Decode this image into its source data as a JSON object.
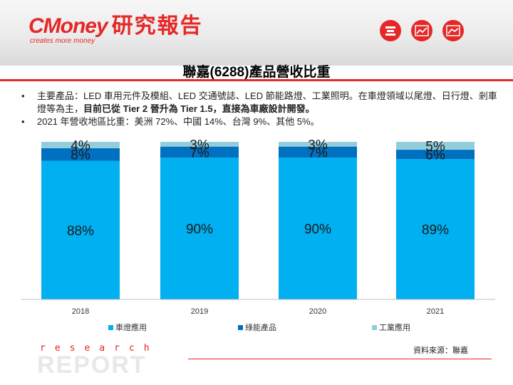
{
  "header": {
    "logo_text": "CMoney",
    "logo_cn": "研究報告",
    "logo_tagline": "creates more money",
    "icons": [
      "stack-icon",
      "trend-icon",
      "chart-icon"
    ],
    "accent_color": "#e52727"
  },
  "slide_title": "聯嘉(6288)產品營收比重",
  "bullets": [
    {
      "text_parts": [
        {
          "text": "主要產品：LED 車用元件及模組、LED 交通號誌、LED 節能路燈、工業照明。在車燈領域以尾燈、日行燈、剎車燈等為主，",
          "bold": false
        },
        {
          "text": "目前已從  Tier 2 晉升為 Tier 1.5，直接為車廠設計開發。",
          "bold": true
        }
      ]
    },
    {
      "text_parts": [
        {
          "text": "2021 年營收地區比重：美洲 72%、中國 14%、台灣 9%、其他 5%。",
          "bold": false
        }
      ]
    }
  ],
  "chart_data": {
    "type": "bar",
    "stacked": true,
    "categories": [
      "2018",
      "2019",
      "2020",
      "2021"
    ],
    "series": [
      {
        "name": "車燈應用",
        "values": [
          88,
          90,
          90,
          89
        ],
        "labels": [
          "88%",
          "90%",
          "90%",
          "89%"
        ],
        "color": "#00b0f0"
      },
      {
        "name": "綠能產品",
        "values": [
          8,
          7,
          7,
          6
        ],
        "labels": [
          "8%",
          "7%",
          "7%",
          "6%"
        ],
        "color": "#0070c0"
      },
      {
        "name": "工業應用",
        "values": [
          4,
          3,
          3,
          5
        ],
        "labels": [
          "4%",
          "3%",
          "3%",
          "5%"
        ],
        "color": "#92cddc"
      }
    ],
    "ylim": [
      0,
      100
    ],
    "legend_position": "bottom",
    "grid": false
  },
  "footer": {
    "research": "research",
    "report": "REPORT",
    "source": "資料來源：聯嘉"
  }
}
